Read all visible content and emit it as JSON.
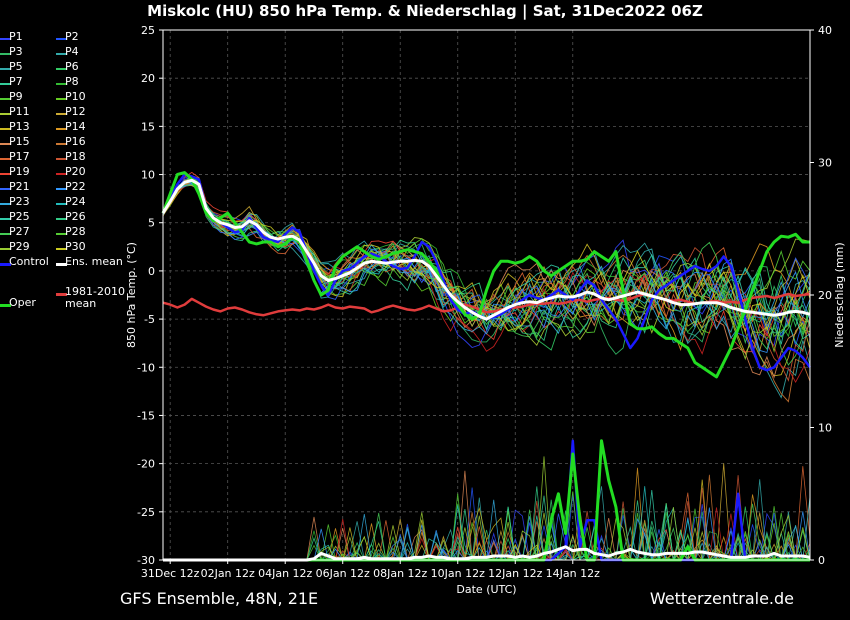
{
  "title": "Miskolc  (HU)  850 hPa Temp. & Niederschlag | Sat, 31Dec2022 06Z",
  "footer": {
    "left": "GFS Ensemble, 48N, 21E",
    "right": "Wetterzentrale.de"
  },
  "colors": {
    "background": "#000000",
    "grid": "#555555",
    "control": "#1a1aff",
    "ens_mean": "#ffffff",
    "oper": "#22dd22",
    "climate": "#e03c3c"
  },
  "legend": [
    {
      "label": "P1",
      "color": "#3344ff"
    },
    {
      "label": "P2",
      "color": "#2255ff"
    },
    {
      "label": "P3",
      "color": "#33bb66"
    },
    {
      "label": "P4",
      "color": "#33aaaa"
    },
    {
      "label": "P5",
      "color": "#33aaaa"
    },
    {
      "label": "P6",
      "color": "#33cc66"
    },
    {
      "label": "P7",
      "color": "#33cc99"
    },
    {
      "label": "P8",
      "color": "#33bb33"
    },
    {
      "label": "P9",
      "color": "#55cc33"
    },
    {
      "label": "P10",
      "color": "#66cc22"
    },
    {
      "label": "P11",
      "color": "#aacc33"
    },
    {
      "label": "P12",
      "color": "#ccaa33"
    },
    {
      "label": "P13",
      "color": "#ccbb22"
    },
    {
      "label": "P14",
      "color": "#dd9922"
    },
    {
      "label": "P15",
      "color": "#dd8855"
    },
    {
      "label": "P16",
      "color": "#cc7733"
    },
    {
      "label": "P17",
      "color": "#dd6633"
    },
    {
      "label": "P18",
      "color": "#cc5533"
    },
    {
      "label": "P19",
      "color": "#ee4433"
    },
    {
      "label": "P20",
      "color": "#cc2222"
    },
    {
      "label": "P21",
      "color": "#3366ff"
    },
    {
      "label": "P22",
      "color": "#3399ff"
    },
    {
      "label": "P23",
      "color": "#33aadd"
    },
    {
      "label": "P24",
      "color": "#22bbbb"
    },
    {
      "label": "P25",
      "color": "#33ccaa"
    },
    {
      "label": "P26",
      "color": "#33cc88"
    },
    {
      "label": "P27",
      "color": "#44cc55"
    },
    {
      "label": "P28",
      "color": "#55cc33"
    },
    {
      "label": "P29",
      "color": "#99cc33"
    },
    {
      "label": "P30",
      "color": "#cccc22"
    },
    {
      "label": "Control",
      "color": "#1a1aff"
    },
    {
      "label": "Ens. mean",
      "color": "#ffffff"
    },
    {
      "label": "Oper",
      "color": "#22dd22"
    },
    {
      "label": "1981-2010\nmean",
      "color": "#e03c3c"
    }
  ],
  "chart_data": {
    "type": "line",
    "xlabel": "Date (UTC)",
    "ylabel": "850 hPa Temp. (°C)",
    "y2label": "Niederschlag (mm)",
    "ylim": [
      -30,
      25
    ],
    "y2lim": [
      0,
      40
    ],
    "yticks": [
      25,
      20,
      15,
      10,
      5,
      0,
      -5,
      -10,
      -15,
      -20,
      -25,
      -30
    ],
    "y2ticks": [
      40,
      30,
      20,
      10,
      0
    ],
    "xticks": [
      "31Dec 12z",
      "02Jan 12z",
      "04Jan 12z",
      "06Jan 12z",
      "08Jan 12z",
      "10Jan 12z",
      "12Jan 12z",
      "14Jan 12z"
    ],
    "x_step_hours": 6,
    "grid": true,
    "temperature_series": [
      {
        "name": "Control",
        "color": "#1a1aff",
        "values": [
          6,
          7.5,
          9,
          10,
          9.8,
          9.5,
          6.5,
          5.5,
          5,
          4.5,
          4,
          4.2,
          5.5,
          4.5,
          3.5,
          3.2,
          3,
          3.8,
          4.5,
          4,
          2,
          0,
          -1.5,
          -2.5,
          -1,
          0,
          0.2,
          0.8,
          1.5,
          1.8,
          1.5,
          1,
          0.5,
          0.2,
          0.3,
          1.5,
          3,
          2.5,
          1,
          -1,
          -3,
          -4,
          -4.5,
          -4.2,
          -4.6,
          -5,
          -4.8,
          -4.5,
          -4,
          -3.5,
          -3,
          -2.5,
          -2.8,
          -3,
          -2.5,
          -2,
          -2.5,
          -3,
          -2,
          -1,
          -1.5,
          -3,
          -4,
          -5,
          -6.5,
          -8,
          -7,
          -5,
          -3,
          -2,
          -1.5,
          -1,
          -0.5,
          0,
          0.5,
          0.2,
          0,
          0.5,
          1.5,
          0.5,
          -2,
          -5,
          -8,
          -10,
          -10.3,
          -10,
          -9,
          -8,
          -8.3,
          -9,
          -10
        ]
      },
      {
        "name": "Ens. mean",
        "color": "#ffffff",
        "values": [
          6,
          7.2,
          8.5,
          9.2,
          9.4,
          9,
          6.5,
          5.5,
          5,
          4.8,
          4.5,
          4.6,
          5.2,
          4.8,
          4,
          3.5,
          3.3,
          3.5,
          3.6,
          3.2,
          2,
          0.8,
          -0.5,
          -1,
          -0.8,
          -0.5,
          -0.2,
          0.3,
          0.8,
          1,
          0.9,
          0.8,
          0.9,
          1,
          1,
          1.1,
          1,
          0.5,
          -0.5,
          -1.5,
          -2.5,
          -3.2,
          -3.8,
          -4.3,
          -4.7,
          -5,
          -4.6,
          -4.2,
          -3.8,
          -3.5,
          -3.3,
          -3.2,
          -3.3,
          -3,
          -2.8,
          -2.6,
          -2.7,
          -2.7,
          -2.5,
          -2.2,
          -2.4,
          -2.8,
          -3,
          -2.8,
          -2.6,
          -2.4,
          -2.2,
          -2.4,
          -2.6,
          -2.8,
          -3,
          -3.3,
          -3.5,
          -3.5,
          -3.4,
          -3.3,
          -3.3,
          -3.3,
          -3.5,
          -3.8,
          -4,
          -4.2,
          -4.3,
          -4.4,
          -4.5,
          -4.6,
          -4.5,
          -4.3,
          -4.2,
          -4.3,
          -4.5
        ]
      },
      {
        "name": "Oper",
        "color": "#22dd22",
        "values": [
          6,
          8,
          10,
          10.2,
          9.5,
          8,
          6,
          5.2,
          5.5,
          6,
          5,
          4,
          3,
          2.8,
          3,
          3,
          2.5,
          2.8,
          3.5,
          3,
          1,
          -1,
          -2.5,
          -2,
          0.5,
          1.5,
          2,
          2.5,
          2,
          1.5,
          1.2,
          1.5,
          1.8,
          2,
          2.2,
          2,
          1.8,
          1,
          0,
          -1.5,
          -2.5,
          -3.5,
          -4.5,
          -5,
          -4.5,
          -2,
          0,
          1,
          1,
          0.8,
          1,
          1.5,
          1,
          0,
          -0.5,
          0,
          0.5,
          1,
          1,
          1.2,
          2,
          1.5,
          1,
          2,
          -2,
          -5.5,
          -6,
          -6,
          -5.8,
          -6.5,
          -7,
          -7,
          -7.5,
          -8,
          -9.5,
          -10,
          -10.5,
          -11,
          -9.5,
          -8,
          -6,
          -4,
          -2,
          0,
          2,
          3,
          3.6,
          3.5,
          3.8,
          3,
          3
        ]
      },
      {
        "name": "1981-2010 mean",
        "color": "#e03c3c",
        "values": [
          -3.3,
          -3.5,
          -3.8,
          -3.5,
          -2.9,
          -3.3,
          -3.7,
          -4,
          -4.2,
          -3.9,
          -3.8,
          -4,
          -4.3,
          -4.5,
          -4.6,
          -4.4,
          -4.2,
          -4.1,
          -4,
          -4.1,
          -3.9,
          -4,
          -3.8,
          -3.5,
          -3.8,
          -3.9,
          -3.7,
          -3.8,
          -3.9,
          -4.3,
          -4.1,
          -3.8,
          -3.6,
          -3.8,
          -4,
          -4.1,
          -3.9,
          -3.6,
          -3.9,
          -4.2,
          -4.1,
          -3.8,
          -3.5,
          -3.7,
          -4,
          -4.3,
          -4.2,
          -4,
          -3.9,
          -3.8,
          -3.7,
          -3.5,
          -3.4,
          -3.4,
          -3.3,
          -3.4,
          -3.3,
          -3.1,
          -3,
          -3.2,
          -3,
          -2.9,
          -2.8,
          -3,
          -3.1,
          -2.9,
          -2.6,
          -2.4,
          -2.6,
          -2.8,
          -3,
          -3.1,
          -3,
          -3.2,
          -3.4,
          -3.3,
          -3.2,
          -3.1,
          -3.3,
          -3.2,
          -3.3,
          -3,
          -2.8,
          -2.7,
          -2.6,
          -2.8,
          -2.6,
          -2.4,
          -2.6,
          -2.5,
          -2.4
        ]
      }
    ],
    "precipitation_series": [
      {
        "name": "Control",
        "color": "#1a1aff",
        "values": [
          0,
          0,
          0,
          0,
          0,
          0,
          0,
          0,
          0,
          0,
          0,
          0,
          0,
          0,
          0,
          0,
          0,
          0,
          0,
          0,
          0,
          0,
          0,
          0,
          0,
          0,
          0,
          0,
          0,
          0,
          0,
          0,
          0,
          0,
          0,
          0,
          0,
          0,
          0,
          0,
          0,
          0,
          0,
          0,
          0,
          0,
          0,
          0,
          0,
          0,
          0,
          0,
          0,
          0,
          0,
          0.5,
          1,
          9,
          1,
          3,
          3,
          0,
          0,
          0,
          0,
          0,
          0,
          0,
          0,
          0,
          0,
          0,
          0,
          0,
          0,
          0,
          0,
          0,
          0,
          0,
          5,
          0,
          0,
          0,
          0,
          0,
          0,
          0,
          0,
          0,
          0
        ]
      },
      {
        "name": "Ens. mean",
        "color": "#ffffff",
        "values": [
          0,
          0,
          0,
          0,
          0,
          0,
          0,
          0,
          0,
          0,
          0,
          0,
          0,
          0,
          0,
          0,
          0,
          0,
          0,
          0,
          0,
          0.1,
          0.5,
          0.3,
          0.1,
          0.1,
          0.1,
          0.1,
          0.2,
          0.1,
          0.1,
          0.1,
          0.1,
          0.1,
          0.1,
          0.2,
          0.2,
          0.3,
          0.2,
          0.2,
          0.1,
          0.1,
          0.1,
          0.2,
          0.2,
          0.2,
          0.3,
          0.3,
          0.3,
          0.2,
          0.3,
          0.2,
          0.3,
          0.5,
          0.6,
          0.8,
          1,
          0.7,
          0.8,
          0.8,
          0.5,
          0.4,
          0.3,
          0.5,
          0.6,
          0.8,
          0.6,
          0.5,
          0.4,
          0.4,
          0.5,
          0.5,
          0.5,
          0.5,
          0.6,
          0.6,
          0.5,
          0.4,
          0.3,
          0.2,
          0.2,
          0.2,
          0.3,
          0.3,
          0.3,
          0.5,
          0.3,
          0.3,
          0.3,
          0.3,
          0.2
        ]
      },
      {
        "name": "Oper",
        "color": "#22dd22",
        "values": [
          0,
          0,
          0,
          0,
          0,
          0,
          0,
          0,
          0,
          0,
          0,
          0,
          0,
          0,
          0,
          0,
          0,
          0,
          0,
          0,
          0,
          0,
          0,
          0,
          0,
          0,
          0,
          0,
          0,
          0,
          0,
          0,
          0,
          0,
          0,
          0,
          0,
          0,
          0,
          0,
          0,
          0,
          0,
          0,
          0,
          0,
          0,
          0,
          0,
          0,
          0,
          0,
          0,
          0,
          3,
          5,
          2,
          8,
          3,
          0,
          0,
          9,
          6,
          4,
          0,
          0,
          0,
          0,
          0,
          0,
          0,
          0,
          0,
          1,
          0,
          0,
          0,
          0,
          0,
          0,
          0,
          0,
          0,
          0,
          0,
          0,
          0,
          0,
          0,
          0,
          0
        ]
      }
    ]
  }
}
